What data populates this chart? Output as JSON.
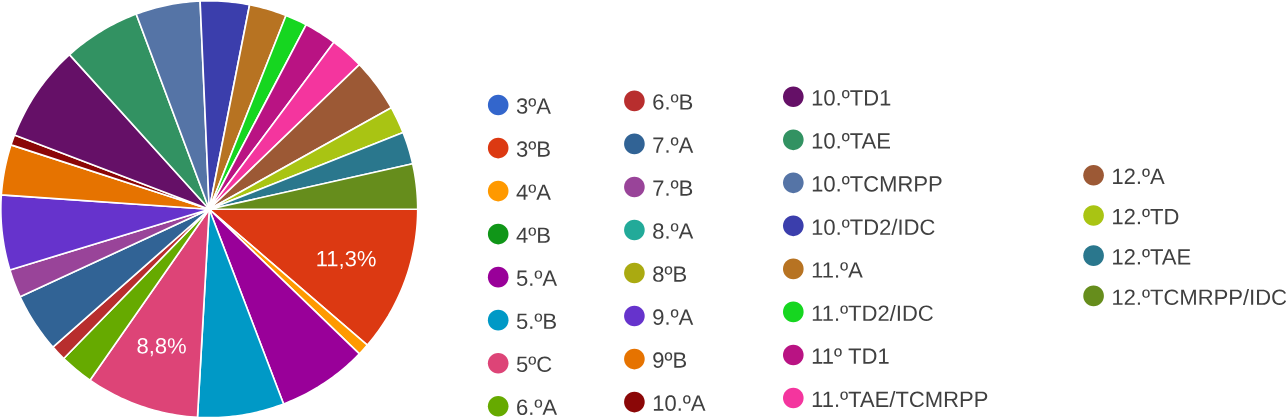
{
  "chart_data": {
    "type": "pie",
    "categories": [
      "3ºA",
      "3ºB",
      "4ºA",
      "4ºB",
      "5.ºA",
      "5.ºB",
      "5ºC",
      "6.ºA",
      "6.ºB",
      "7.ºA",
      "7.ºB",
      "8.ºA",
      "8ºB",
      "9.ºA",
      "9ºB",
      "10.ºA",
      "10.ºTD1",
      "10.ºTAE",
      "10.ºTCMRPP",
      "10.ºTD2/IDC",
      "11.ºA",
      "11.ºTD2/IDC",
      "11º TD1",
      "11.ºTAE/TCMRPP",
      "12.ºA",
      "12.ºTD",
      "12.ºTAE",
      "12.ºTCMRPP/IDC"
    ],
    "values": [
      0,
      11.3,
      0.9,
      0,
      7.0,
      6.7,
      8.8,
      2.6,
      1.2,
      4.6,
      2.2,
      0,
      0,
      5.8,
      3.9,
      0.8,
      7.5,
      6.0,
      5.0,
      3.8,
      2.9,
      1.7,
      2.5,
      2.6,
      4.1,
      2.1,
      2.5,
      3.5
    ],
    "value_labels": [
      null,
      "11,3%",
      null,
      null,
      null,
      null,
      "8,8%",
      null,
      null,
      null,
      null,
      null,
      null,
      null,
      null,
      null,
      null,
      null,
      null,
      null,
      null,
      null,
      null,
      null,
      null,
      null,
      null,
      null
    ],
    "colors": [
      "#3366cc",
      "#dc3912",
      "#ff9900",
      "#109618",
      "#990099",
      "#0099c6",
      "#dd4477",
      "#66aa00",
      "#b82e2e",
      "#316395",
      "#994499",
      "#22aa99",
      "#aaaa11",
      "#6633cc",
      "#e67300",
      "#8b0707",
      "#651067",
      "#329262",
      "#5574a6",
      "#3b3eac",
      "#b77322",
      "#16d620",
      "#b91383",
      "#f4359e",
      "#9c5935",
      "#a9c413",
      "#2a778d",
      "#668d1c"
    ],
    "legend": "right"
  }
}
